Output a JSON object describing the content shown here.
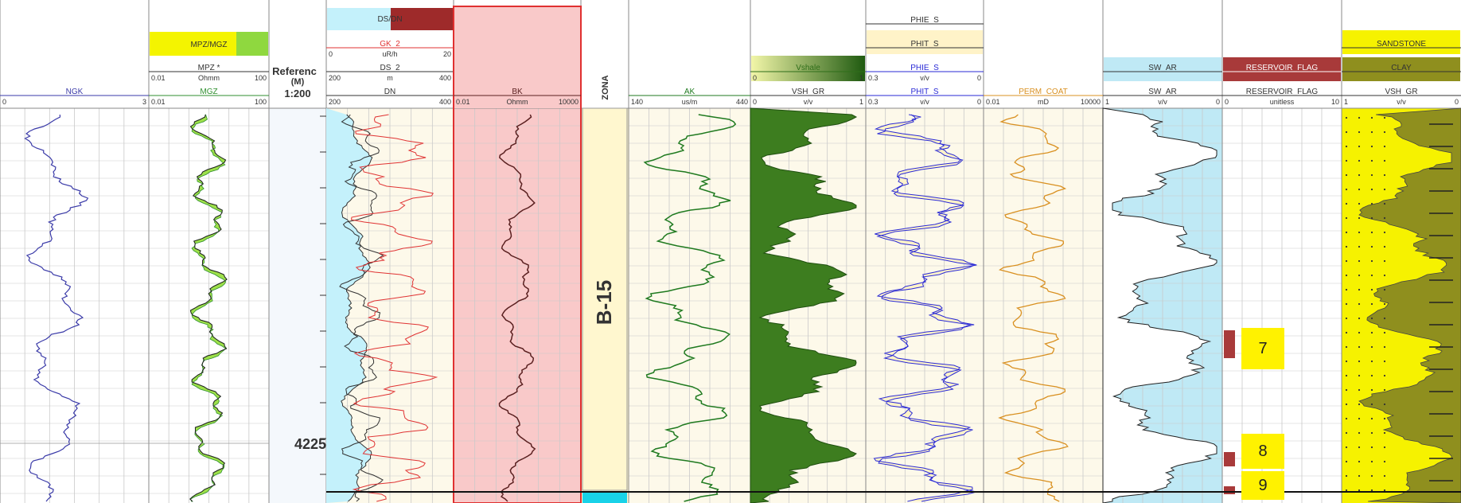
{
  "reference": {
    "title_fragment": "Referenc",
    "unit": "(M)",
    "scale": "1:200",
    "depth_label": "4225"
  },
  "zone": {
    "header": "ZONA",
    "name": "B-15"
  },
  "tracks": [
    {
      "id": "ngk",
      "curves": [
        {
          "name": "NGK",
          "min": "0",
          "unit": "",
          "max": "3",
          "color": "#3a3aa8"
        }
      ]
    },
    {
      "id": "mpz",
      "fill_title": "MPZ/MGZ",
      "fill_colors": [
        "#f4f400",
        "#8fd83f"
      ],
      "curves": [
        {
          "name": "MPZ *",
          "min": "0.01",
          "unit": "Ohmm",
          "max": "100",
          "color": "#333333"
        },
        {
          "name": "MGZ",
          "min": "0.01",
          "unit": "",
          "max": "100",
          "color": "#2f8f2f"
        }
      ]
    },
    {
      "id": "gk",
      "fill_title": "DS/DN",
      "fill_colors": [
        "#c4f1fb",
        "#9e2a2a"
      ],
      "curves": [
        {
          "name": "GK_2",
          "min": "0",
          "unit": "uR/h",
          "max": "20",
          "color": "#e03333"
        },
        {
          "name": "DS_2",
          "min": "200",
          "unit": "m",
          "max": "400",
          "color": "#333333"
        },
        {
          "name": "DN",
          "min": "200",
          "unit": "",
          "max": "400",
          "color": "#333333"
        }
      ]
    },
    {
      "id": "bk",
      "curves": [
        {
          "name": "BK",
          "min": "0.01",
          "unit": "Ohmm",
          "max": "10000",
          "color": "#5a2020"
        }
      ]
    },
    {
      "id": "ak",
      "curves": [
        {
          "name": "AK",
          "min": "140",
          "unit": "us/m",
          "max": "440",
          "color": "#1f7a1f"
        }
      ]
    },
    {
      "id": "vsh",
      "curves": [
        {
          "name": "Vshale",
          "sub": "(VSH_GR)",
          "min": "0",
          "unit": "",
          "max": "1",
          "color": "#2f6e1a"
        },
        {
          "name": "VSH_GR",
          "min": "0",
          "unit": "v/v",
          "max": "1",
          "color": "#333333"
        }
      ]
    },
    {
      "id": "phi",
      "curves": [
        {
          "name": "PHIE_S",
          "min": "",
          "unit": "",
          "max": "",
          "color": "#333333"
        },
        {
          "name": "PHIT_S",
          "min": "",
          "unit": "",
          "max": "",
          "color": "#333333"
        },
        {
          "name": "PHIE_S",
          "min": "0.3",
          "unit": "v/v",
          "max": "0",
          "color": "#2a2ad6"
        },
        {
          "name": "PHIT_S",
          "min": "0.3",
          "unit": "v/v",
          "max": "0",
          "color": "#2a2ad6"
        }
      ]
    },
    {
      "id": "perm",
      "curves": [
        {
          "name": "PERM_COAT",
          "min": "0.01",
          "unit": "mD",
          "max": "10000",
          "color": "#d99020"
        }
      ]
    },
    {
      "id": "sw",
      "curves": [
        {
          "name": "SW_AR",
          "min": "",
          "unit": "",
          "max": "",
          "color": "#333333"
        },
        {
          "name": "SW_AR",
          "min": "1",
          "unit": "v/v",
          "max": "0",
          "color": "#333333"
        }
      ]
    },
    {
      "id": "flag",
      "curves": [
        {
          "name": "RESERVOIR_FLAG",
          "min": "",
          "unit": "",
          "max": "",
          "color": "#ffffff"
        },
        {
          "name": "RESERVOIR_FLAG",
          "min": "0",
          "unit": "unitless",
          "max": "10",
          "color": "#333333"
        }
      ],
      "markers": [
        "7",
        "8",
        "9"
      ]
    },
    {
      "id": "lith",
      "curves": [
        {
          "name": "SANDSTONE",
          "min": "",
          "unit": "",
          "max": "",
          "color": "#333333"
        },
        {
          "name": "CLAY",
          "min": "",
          "unit": "",
          "max": "",
          "color": "#333333"
        },
        {
          "name": "VSH_GR",
          "min": "1",
          "unit": "v/v",
          "max": "0",
          "color": "#333333"
        }
      ]
    }
  ],
  "colors": {
    "grid": "#c9c9c9",
    "cream": "#fdf9ea",
    "pink": "#f9c9c9",
    "zone_fill": "#fff7cf",
    "water": "#bfe9f5",
    "flag_bar": "#a83a3a",
    "marker_bg": "#fff200",
    "lith_fill": "#8f8f1e",
    "sand_fill": "#f6f200"
  }
}
